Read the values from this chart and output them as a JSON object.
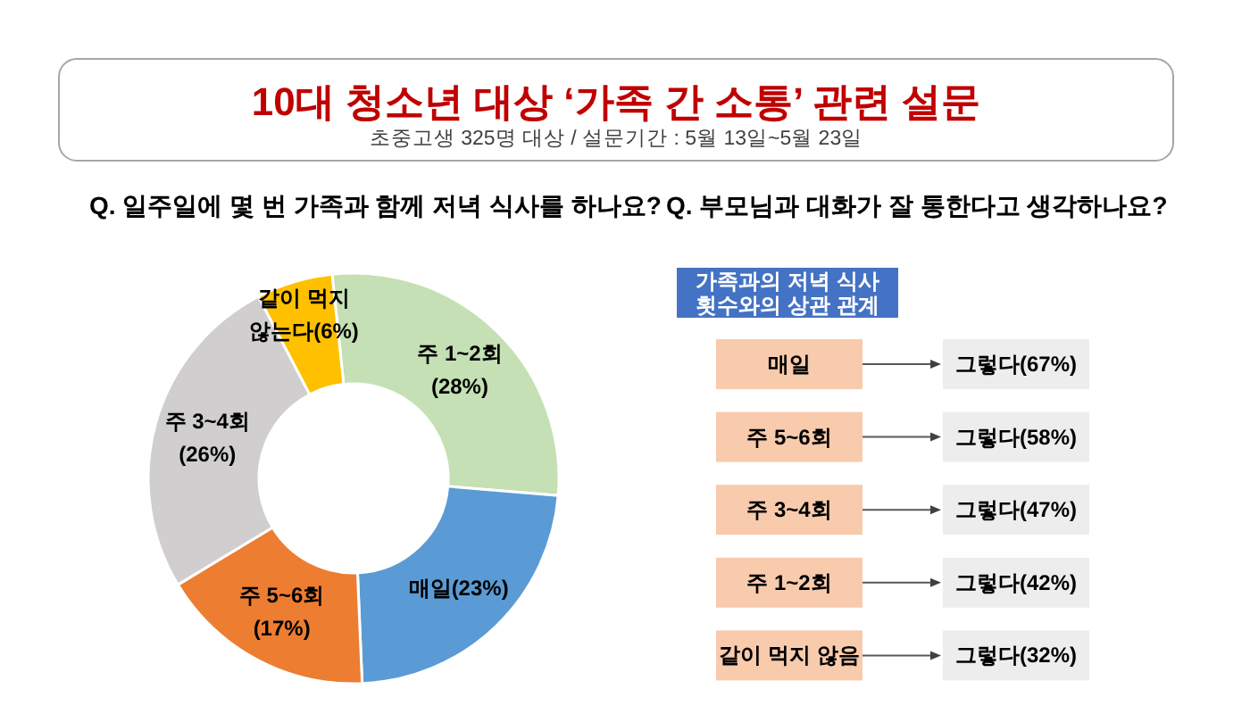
{
  "chart_data": [
    {
      "type": "other",
      "title": "10대 청소년 대상 ‘가족 간 소통’ 관련 설문",
      "subtitle": "초중고생 325명 대상 / 설문기간 : 5월 13일~5월 23일"
    },
    {
      "type": "donut",
      "title": "Q. 일주일에 몇 번 가족과 함께 저녁 식사를 하나요?",
      "categories": [
        "주 1~2회",
        "매일",
        "주 5~6회",
        "주 3~4회",
        "같이 먹지 않는다"
      ],
      "values": [
        28,
        23,
        17,
        26,
        6
      ],
      "colors": [
        "#c5e0b4",
        "#5b9bd5",
        "#ed7d31",
        "#d0cece",
        "#ffc000"
      ],
      "value_labels": [
        "(28%)",
        "(23%)",
        "(17%)",
        "(26%)",
        "(6%)"
      ]
    },
    {
      "type": "other",
      "title": "Q. 부모님과 대화가 잘 통한다고 생각하나요?",
      "subtitle": "가족과의 저녁 식사 횟수와의 상관 관계",
      "categories": [
        "매일",
        "주 5~6회",
        "주 3~4회",
        "주 1~2회",
        "같이 먹지 않음"
      ],
      "value_labels": [
        "그렇다(67%)",
        "그렇다(58%)",
        "그렇다(47%)",
        "그렇다(42%)",
        "그렇다(32%)"
      ]
    }
  ]
}
